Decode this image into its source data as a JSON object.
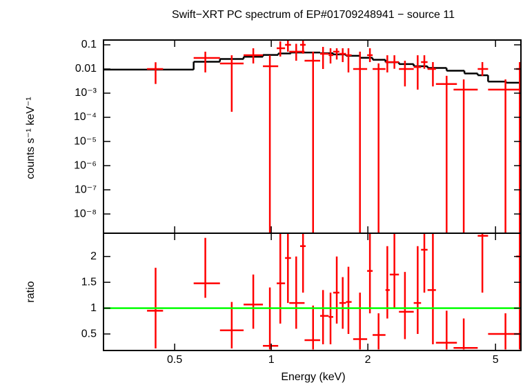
{
  "chart_data": [
    {
      "type": "spectrum",
      "title": "Swift−XRT PC spectrum of EP#01709248941 − source 11",
      "y_label": "counts s⁻¹ keV⁻¹",
      "xscale": "log",
      "yscale": "log",
      "xlim": [
        0.3,
        6.0
      ],
      "ylim": [
        1.6e-09,
        0.158
      ],
      "yticks": [
        0.1,
        0.01,
        {
          "value": 0.001,
          "label": "10⁻³"
        },
        {
          "value": 0.0001,
          "label": "10⁻⁴"
        },
        {
          "value": 1e-05,
          "label": "10⁻⁵"
        },
        {
          "value": 1e-06,
          "label": "10⁻⁶"
        },
        {
          "value": 1e-07,
          "label": "10⁻⁷"
        },
        {
          "value": 1e-08,
          "label": "10⁻⁸"
        }
      ],
      "series": [
        {
          "color": "#ff0000",
          "x": [
            0.436,
            0.623,
            0.753,
            0.879,
            0.99,
            1.067,
            1.127,
            1.196,
            1.256,
            1.35,
            1.45,
            1.53,
            1.6,
            1.67,
            1.74,
            1.89,
            2.03,
            2.16,
            2.3,
            2.42,
            2.61,
            2.86,
            3.0,
            3.19,
            3.52,
            3.98,
            4.55,
            5.37,
            5.95
          ],
          "x_lo": [
            0.41,
            0.573,
            0.692,
            0.82,
            0.942,
            1.04,
            1.104,
            1.138,
            1.23,
            1.27,
            1.42,
            1.51,
            1.56,
            1.63,
            1.71,
            1.8,
            1.99,
            2.07,
            2.27,
            2.34,
            2.5,
            2.78,
            2.93,
            3.07,
            3.26,
            3.7,
            4.4,
            4.74,
            5.8
          ],
          "x_hi": [
            0.46,
            0.692,
            0.82,
            0.942,
            1.051,
            1.104,
            1.152,
            1.27,
            1.28,
            1.42,
            1.51,
            1.56,
            1.63,
            1.71,
            1.78,
            1.99,
            2.07,
            2.27,
            2.34,
            2.5,
            2.78,
            2.93,
            3.07,
            3.26,
            3.79,
            4.4,
            4.74,
            6.08,
            6.1
          ],
          "values": [
            0.01,
            0.0286,
            0.0169,
            0.0373,
            0.013,
            0.072,
            0.1,
            0.052,
            0.1,
            0.022,
            0.0425,
            0.0373,
            0.052,
            0.0425,
            0.0373,
            0.01,
            0.0373,
            0.01,
            0.0193,
            0.0193,
            0.01,
            0.012,
            0.0193,
            0.01,
            0.0024,
            0.0014,
            0.01,
            0.0014,
            0.01
          ],
          "y_lo": [
            0.0024,
            0.0072,
            0.00017,
            0.0169,
            1e-09,
            0.0327,
            0.052,
            0.022,
            0.043,
            1e-09,
            0.01,
            0.0169,
            0.0246,
            0.0193,
            0.0072,
            1e-09,
            0.0193,
            1e-09,
            0.0072,
            0.0102,
            0.0019,
            0.0014,
            0.0102,
            0.0019,
            1e-09,
            1e-09,
            0.0052,
            1e-09,
            1e-09
          ],
          "y_hi": [
            0.019,
            0.052,
            0.037,
            0.072,
            0.037,
            0.139,
            0.16,
            0.11,
            0.16,
            0.052,
            0.082,
            0.072,
            0.072,
            0.0723,
            0.072,
            0.052,
            0.072,
            0.017,
            0.037,
            0.037,
            0.022,
            0.037,
            0.037,
            0.0193,
            0.0052,
            0.0037,
            0.0193,
            0.0037,
            0.0193
          ]
        }
      ],
      "model": {
        "color": "#000000",
        "bins": [
          0.3,
          0.573,
          0.692,
          0.82,
          0.942,
          1.051,
          1.152,
          1.27,
          1.42,
          1.56,
          1.71,
          1.89,
          2.07,
          2.27,
          2.5,
          2.78,
          3.07,
          3.52,
          4.0,
          4.4,
          4.74,
          5.4,
          6.0
        ],
        "values": [
          0.0094,
          0.02,
          0.026,
          0.032,
          0.038,
          0.044,
          0.048,
          0.048,
          0.045,
          0.04,
          0.035,
          0.029,
          0.024,
          0.019,
          0.016,
          0.013,
          0.011,
          0.0085,
          0.0065,
          0.0055,
          0.003,
          0.0027
        ]
      }
    },
    {
      "type": "ratio",
      "x_label": "Energy (keV)",
      "y_label": "ratio",
      "xscale": "log",
      "xlim": [
        0.3,
        6.0
      ],
      "ylim": [
        0.18,
        2.45
      ],
      "xticks": [
        0.5,
        1,
        2,
        5
      ],
      "yticks": [
        0.5,
        1,
        1.5,
        2
      ],
      "reference_line": 1,
      "reference_color": "#00ff00",
      "series": [
        {
          "color": "#ff0000",
          "values": [
            0.95,
            1.48,
            0.57,
            1.07,
            0.27,
            1.48,
            1.97,
            1.1,
            2.2,
            0.38,
            0.85,
            0.83,
            1.3,
            1.1,
            1.12,
            0.4,
            1.72,
            0.48,
            1.35,
            1.65,
            0.93,
            1.1,
            2.13,
            1.35,
            0.33,
            0.23,
            2.4,
            0.5,
            2.0
          ],
          "y_lo": [
            0.22,
            1.2,
            0.22,
            0.6,
            0.2,
            0.7,
            1.1,
            0.6,
            1.3,
            0.2,
            0.3,
            0.3,
            0.7,
            0.6,
            0.5,
            0.2,
            0.9,
            0.2,
            0.8,
            1.0,
            0.4,
            0.5,
            1.3,
            0.3,
            0.2,
            0.2,
            1.3,
            0.2,
            0.2
          ],
          "y_hi": [
            1.78,
            2.36,
            1.12,
            1.65,
            1.4,
            2.45,
            2.45,
            2.0,
            2.45,
            1.05,
            1.35,
            1.3,
            2.0,
            1.6,
            1.8,
            1.3,
            2.45,
            0.9,
            2.2,
            2.45,
            1.7,
            2.2,
            2.45,
            2.45,
            0.95,
            0.8,
            2.45,
            0.9,
            2.45
          ]
        }
      ]
    }
  ]
}
